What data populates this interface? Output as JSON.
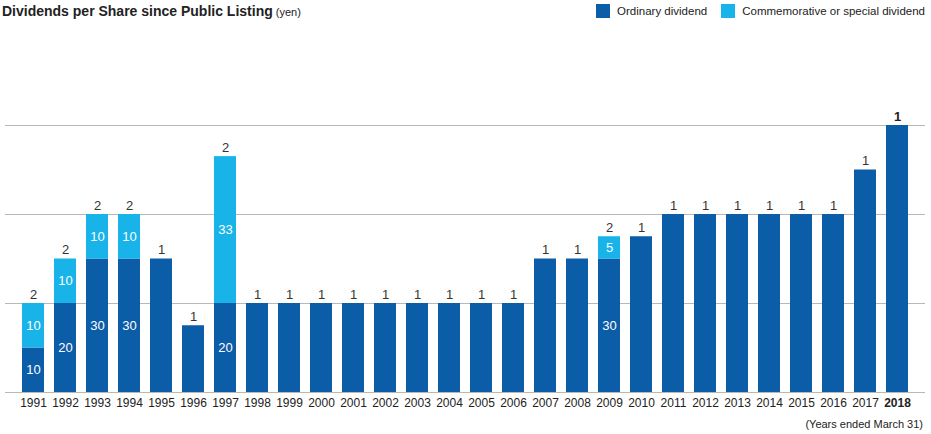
{
  "chart_data": {
    "type": "bar",
    "title": "Dividends per Share since Public Listing",
    "subtitle": "(yen)",
    "x_label": "(Years ended March 31)",
    "categories": [
      "1991",
      "1992",
      "1993",
      "1994",
      "1995",
      "1996",
      "1997",
      "1998",
      "1999",
      "2000",
      "2001",
      "2002",
      "2003",
      "2004",
      "2005",
      "2006",
      "2007",
      "2008",
      "2009",
      "2010",
      "2011",
      "2012",
      "2013",
      "2014",
      "2015",
      "2016",
      "2017",
      "2018"
    ],
    "series": [
      {
        "name": "Ordinary dividend",
        "color": "#0c5da8",
        "values": [
          10,
          20,
          30,
          30,
          30,
          15,
          20,
          20,
          20,
          20,
          20,
          20,
          20,
          20,
          20,
          20,
          30,
          30,
          30,
          35,
          40,
          40,
          40,
          40,
          40,
          40,
          50,
          60
        ]
      },
      {
        "name": "Commemorative or special dividend",
        "color": "#18b4e9",
        "values": [
          10,
          10,
          10,
          10,
          null,
          null,
          33,
          null,
          null,
          null,
          null,
          null,
          null,
          null,
          null,
          null,
          null,
          null,
          5,
          null,
          null,
          null,
          null,
          null,
          null,
          null,
          null,
          null
        ]
      }
    ],
    "stacked": true,
    "data_labels": true,
    "ylim": [
      0,
      60
    ],
    "yticks": [
      0,
      20,
      40,
      60
    ],
    "grid": true,
    "tick_labels": "x",
    "legend": "top-right"
  }
}
